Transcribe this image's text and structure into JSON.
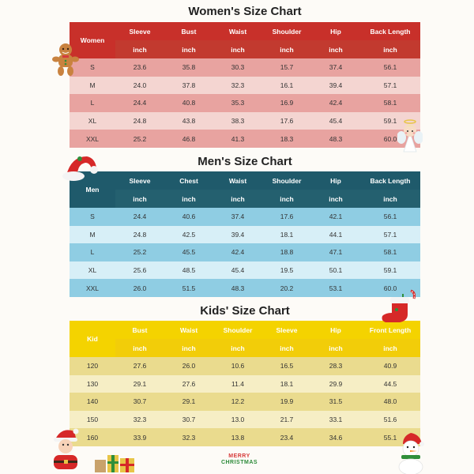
{
  "women": {
    "title": "Women's Size Chart",
    "corner": "Women",
    "headers": [
      "Sleeve",
      "Bust",
      "Waist",
      "Shoulder",
      "Hip",
      "Back Length"
    ],
    "unit": "inch",
    "rows": [
      [
        "S",
        "23.6",
        "35.8",
        "30.3",
        "15.7",
        "37.4",
        "56.1"
      ],
      [
        "M",
        "24.0",
        "37.8",
        "32.3",
        "16.1",
        "39.4",
        "57.1"
      ],
      [
        "L",
        "24.4",
        "40.8",
        "35.3",
        "16.9",
        "42.4",
        "58.1"
      ],
      [
        "XL",
        "24.8",
        "43.8",
        "38.3",
        "17.6",
        "45.4",
        "59.1"
      ],
      [
        "XXL",
        "25.2",
        "46.8",
        "41.3",
        "18.3",
        "48.3",
        "60.0"
      ]
    ]
  },
  "men": {
    "title": "Men's Size Chart",
    "corner": "Men",
    "headers": [
      "Sleeve",
      "Chest",
      "Waist",
      "Shoulder",
      "Hip",
      "Back Length"
    ],
    "unit": "inch",
    "rows": [
      [
        "S",
        "24.4",
        "40.6",
        "37.4",
        "17.6",
        "42.1",
        "56.1"
      ],
      [
        "M",
        "24.8",
        "42.5",
        "39.4",
        "18.1",
        "44.1",
        "57.1"
      ],
      [
        "L",
        "25.2",
        "45.5",
        "42.4",
        "18.8",
        "47.1",
        "58.1"
      ],
      [
        "XL",
        "25.6",
        "48.5",
        "45.4",
        "19.5",
        "50.1",
        "59.1"
      ],
      [
        "XXL",
        "26.0",
        "51.5",
        "48.3",
        "20.2",
        "53.1",
        "60.0"
      ]
    ]
  },
  "kids": {
    "title": "Kids' Size Chart",
    "corner": "Kid",
    "headers": [
      "Bust",
      "Waist",
      "Shoulder",
      "Sleeve",
      "Hip",
      "Front Length"
    ],
    "unit": "inch",
    "rows": [
      [
        "120",
        "27.6",
        "26.0",
        "10.6",
        "16.5",
        "28.3",
        "40.9"
      ],
      [
        "130",
        "29.1",
        "27.6",
        "11.4",
        "18.1",
        "29.9",
        "44.5"
      ],
      [
        "140",
        "30.7",
        "29.1",
        "12.2",
        "19.9",
        "31.5",
        "48.0"
      ],
      [
        "150",
        "32.3",
        "30.7",
        "13.0",
        "21.7",
        "33.1",
        "51.6"
      ],
      [
        "160",
        "33.9",
        "32.3",
        "13.8",
        "23.4",
        "34.6",
        "55.1"
      ]
    ]
  },
  "footer": {
    "line1": "MERRY",
    "line2": "CHRISTMAS"
  },
  "colors": {
    "women_header": "#c8302a",
    "men_header": "#1f5a6b",
    "kids_header": "#f4d300"
  },
  "decorations": [
    "gingerbread-icon",
    "angel-icon",
    "santa-hat-icon",
    "stocking-icon",
    "santa-icon",
    "gift-boxes-icon",
    "snowman-icon"
  ]
}
